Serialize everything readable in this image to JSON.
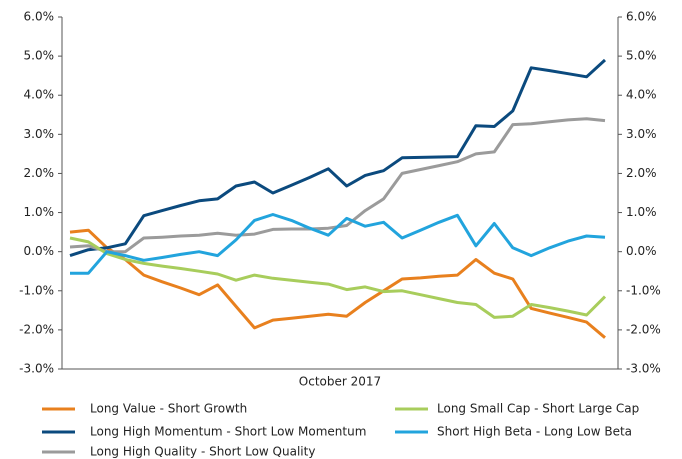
{
  "chart_data": {
    "type": "line",
    "x_label": "October 2017",
    "categories": [
      null,
      null,
      null,
      null,
      null,
      null,
      null,
      null,
      null,
      null,
      null,
      null,
      null,
      null,
      null,
      null,
      null,
      null,
      null,
      null,
      null,
      null,
      null,
      null,
      null,
      null,
      null,
      null,
      null,
      null
    ],
    "ylim": [
      -3,
      6
    ],
    "yticks": [
      {
        "value": -3,
        "label": "-3.0%"
      },
      {
        "value": -2,
        "label": "-2.0%"
      },
      {
        "value": -1,
        "label": "-1.0%"
      },
      {
        "value": 0,
        "label": "0.0%"
      },
      {
        "value": 1,
        "label": "1.0%"
      },
      {
        "value": 2,
        "label": "2.0%"
      },
      {
        "value": 3,
        "label": "3.0%"
      },
      {
        "value": 4,
        "label": "4.0%"
      },
      {
        "value": 5,
        "label": "5.0%"
      },
      {
        "value": 6,
        "label": "6.0%"
      }
    ],
    "y2lim": [
      -3,
      6
    ],
    "y2ticks": [
      {
        "value": -3,
        "label": "-3.0%"
      },
      {
        "value": -2,
        "label": "-2.0%"
      },
      {
        "value": -1,
        "label": "-1.0%"
      },
      {
        "value": 0,
        "label": "0.0%"
      },
      {
        "value": 1,
        "label": "1.0%"
      },
      {
        "value": 2,
        "label": "2.0%"
      },
      {
        "value": 3,
        "label": "3.0%"
      },
      {
        "value": 4,
        "label": "4.0%"
      },
      {
        "value": 5,
        "label": "5.0%"
      },
      {
        "value": 6,
        "label": "6.0%"
      }
    ],
    "grid": false,
    "legend": "bottom",
    "series": [
      {
        "name": "Long Value - Short Growth",
        "color": "#e8801e",
        "values": [
          0.5,
          0.55,
          0.1,
          -0.2,
          -0.6,
          -0.77,
          -0.93,
          -1.1,
          -0.85,
          -1.4,
          -1.95,
          -1.75,
          -1.7,
          -1.65,
          -1.6,
          -1.65,
          -1.3,
          -1.0,
          -0.7,
          -0.67,
          -0.63,
          -0.6,
          -0.2,
          -0.55,
          -0.7,
          -1.45,
          -1.57,
          -1.68,
          -1.8,
          -2.2
        ]
      },
      {
        "name": "Long High Momentum - Short Low Momentum",
        "color": "#0b4a7e",
        "values": [
          -0.1,
          0.05,
          0.1,
          0.2,
          0.92,
          1.05,
          1.18,
          1.3,
          1.35,
          1.68,
          1.78,
          1.5,
          1.7,
          1.9,
          2.12,
          1.68,
          1.95,
          2.07,
          2.4,
          2.41,
          2.42,
          2.43,
          3.22,
          3.2,
          3.6,
          4.7,
          4.63,
          4.55,
          4.47,
          4.9
        ]
      },
      {
        "name": "Long High Quality - Short Low Quality",
        "color": "#9b9b9b",
        "values": [
          0.12,
          0.15,
          0.0,
          0.0,
          0.35,
          0.37,
          0.4,
          0.42,
          0.47,
          0.42,
          0.45,
          0.57,
          0.58,
          0.58,
          0.6,
          0.67,
          1.05,
          1.35,
          2.0,
          2.1,
          2.2,
          2.3,
          2.5,
          2.55,
          3.25,
          3.27,
          3.32,
          3.37,
          3.4,
          3.35
        ]
      },
      {
        "name": "Long Small Cap - Short Large Cap",
        "color": "#a8cd5c",
        "values": [
          0.35,
          0.25,
          -0.05,
          -0.2,
          -0.3,
          -0.37,
          -0.43,
          -0.5,
          -0.57,
          -0.73,
          -0.6,
          -0.68,
          -0.73,
          -0.78,
          -0.83,
          -0.97,
          -0.9,
          -1.02,
          -1.0,
          -1.1,
          -1.2,
          -1.3,
          -1.35,
          -1.68,
          -1.65,
          -1.35,
          -1.43,
          -1.52,
          -1.62,
          -1.15
        ]
      },
      {
        "name": "Short High Beta - Long Low Beta",
        "color": "#22a4dd",
        "values": [
          -0.55,
          -0.55,
          0.0,
          -0.1,
          -0.22,
          -0.15,
          -0.07,
          0.0,
          -0.1,
          0.3,
          0.8,
          0.95,
          0.8,
          0.6,
          0.42,
          0.85,
          0.65,
          0.75,
          0.35,
          0.55,
          0.75,
          0.93,
          0.15,
          0.72,
          0.1,
          -0.1,
          0.1,
          0.27,
          0.4,
          0.37
        ]
      }
    ]
  }
}
